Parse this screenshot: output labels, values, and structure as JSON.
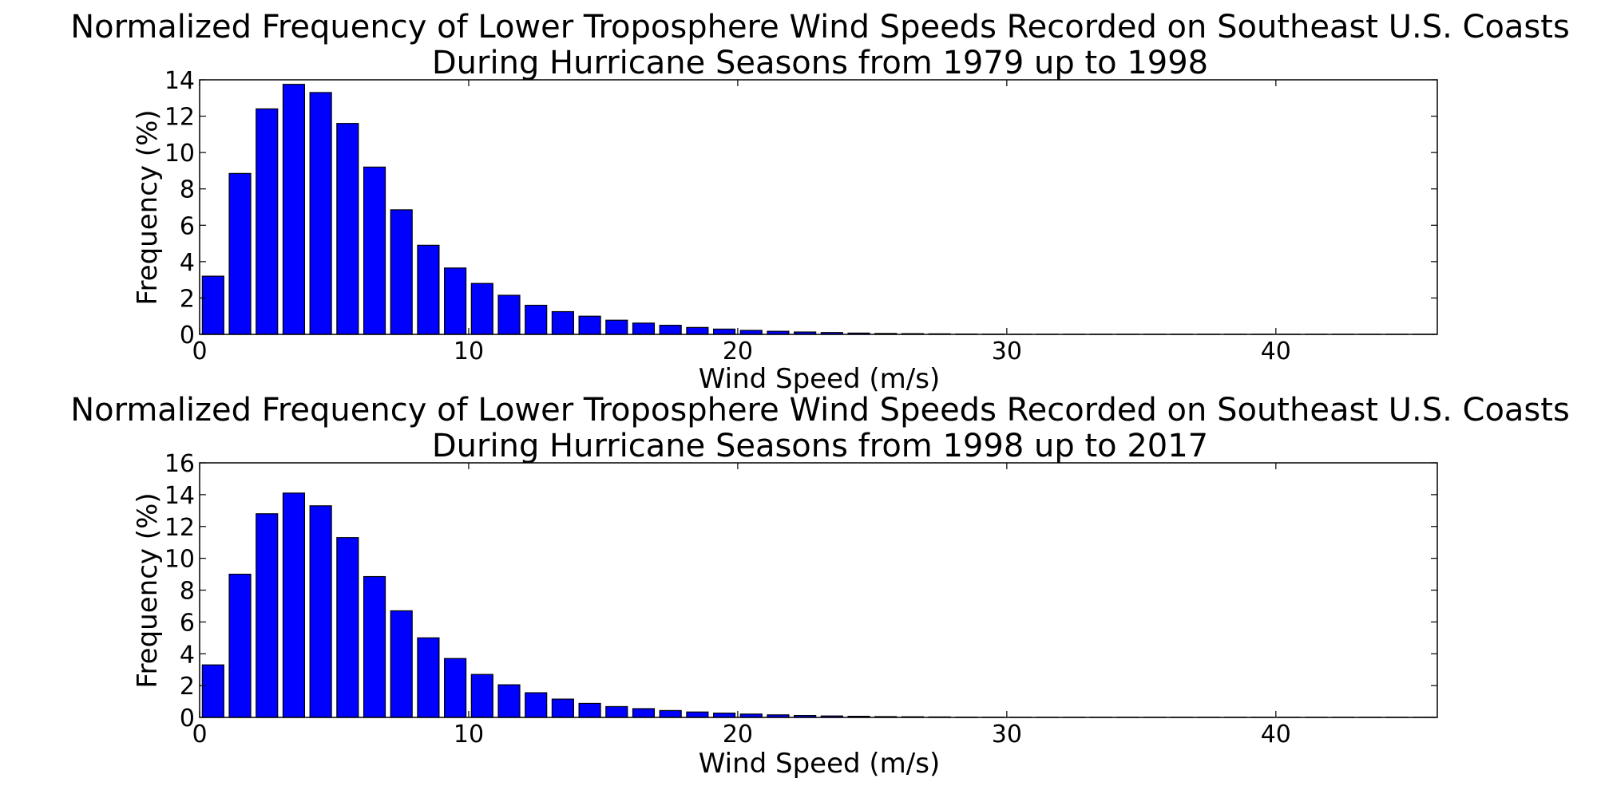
{
  "colors": {
    "bar_fill": "#0000ff",
    "bar_edge": "#000000",
    "axes": "#000000",
    "background": "#ffffff"
  },
  "chart_data": [
    {
      "type": "bar",
      "title": [
        "Normalized Frequency of Lower Troposphere Wind Speeds Recorded on Southeast U.S. Coasts",
        "During Hurricane Seasons from 1979 up to 1998"
      ],
      "xlabel": "Wind Speed (m/s)",
      "ylabel": "Frequency (%)",
      "xlim": [
        0,
        46
      ],
      "ylim": [
        0,
        14
      ],
      "xticks": [
        0,
        10,
        20,
        30,
        40
      ],
      "yticks": [
        0,
        2,
        4,
        6,
        8,
        10,
        12,
        14
      ],
      "grid": false,
      "bin_width": 1,
      "x": [
        0,
        1,
        2,
        3,
        4,
        5,
        6,
        7,
        8,
        9,
        10,
        11,
        12,
        13,
        14,
        15,
        16,
        17,
        18,
        19,
        20,
        21,
        22,
        23,
        24,
        25,
        26,
        27,
        28,
        29,
        30,
        31,
        32,
        33,
        34,
        35,
        36,
        37,
        38,
        39,
        40,
        41,
        42,
        43,
        44,
        45
      ],
      "values": [
        3.2,
        8.85,
        12.4,
        13.75,
        13.3,
        11.6,
        9.2,
        6.85,
        4.9,
        3.65,
        2.8,
        2.15,
        1.6,
        1.25,
        1.0,
        0.78,
        0.62,
        0.5,
        0.38,
        0.29,
        0.22,
        0.17,
        0.13,
        0.1,
        0.07,
        0.05,
        0.04,
        0.03,
        0.02,
        0.015,
        0.01,
        0.01,
        0.01,
        0.01,
        0.01,
        0.01,
        0.01,
        0.01,
        0.01,
        0.01,
        0.01,
        0.01,
        0.01,
        0.01,
        0.01,
        0.01
      ]
    },
    {
      "type": "bar",
      "title": [
        "Normalized Frequency of Lower Troposphere Wind Speeds Recorded on Southeast U.S. Coasts",
        "During Hurricane Seasons from 1998 up to 2017"
      ],
      "xlabel": "Wind Speed (m/s)",
      "ylabel": "Frequency (%)",
      "xlim": [
        0,
        46
      ],
      "ylim": [
        0,
        16
      ],
      "xticks": [
        0,
        10,
        20,
        30,
        40
      ],
      "yticks": [
        0,
        2,
        4,
        6,
        8,
        10,
        12,
        14,
        16
      ],
      "grid": false,
      "bin_width": 1,
      "x": [
        0,
        1,
        2,
        3,
        4,
        5,
        6,
        7,
        8,
        9,
        10,
        11,
        12,
        13,
        14,
        15,
        16,
        17,
        18,
        19,
        20,
        21,
        22,
        23,
        24,
        25,
        26,
        27,
        28,
        29,
        30,
        31,
        32,
        33,
        34,
        35,
        36,
        37,
        38,
        39,
        40,
        41,
        42,
        43,
        44,
        45
      ],
      "values": [
        3.3,
        9.0,
        12.8,
        14.1,
        13.3,
        11.3,
        8.85,
        6.7,
        5.0,
        3.7,
        2.7,
        2.05,
        1.55,
        1.15,
        0.88,
        0.68,
        0.55,
        0.43,
        0.34,
        0.27,
        0.21,
        0.16,
        0.12,
        0.09,
        0.07,
        0.05,
        0.04,
        0.03,
        0.02,
        0.015,
        0.01,
        0.01,
        0.01,
        0.01,
        0.01,
        0.01,
        0.01,
        0.01,
        0.01,
        0.01,
        0.01,
        0.01,
        0.01,
        0.01,
        0.01,
        0.01
      ]
    }
  ]
}
